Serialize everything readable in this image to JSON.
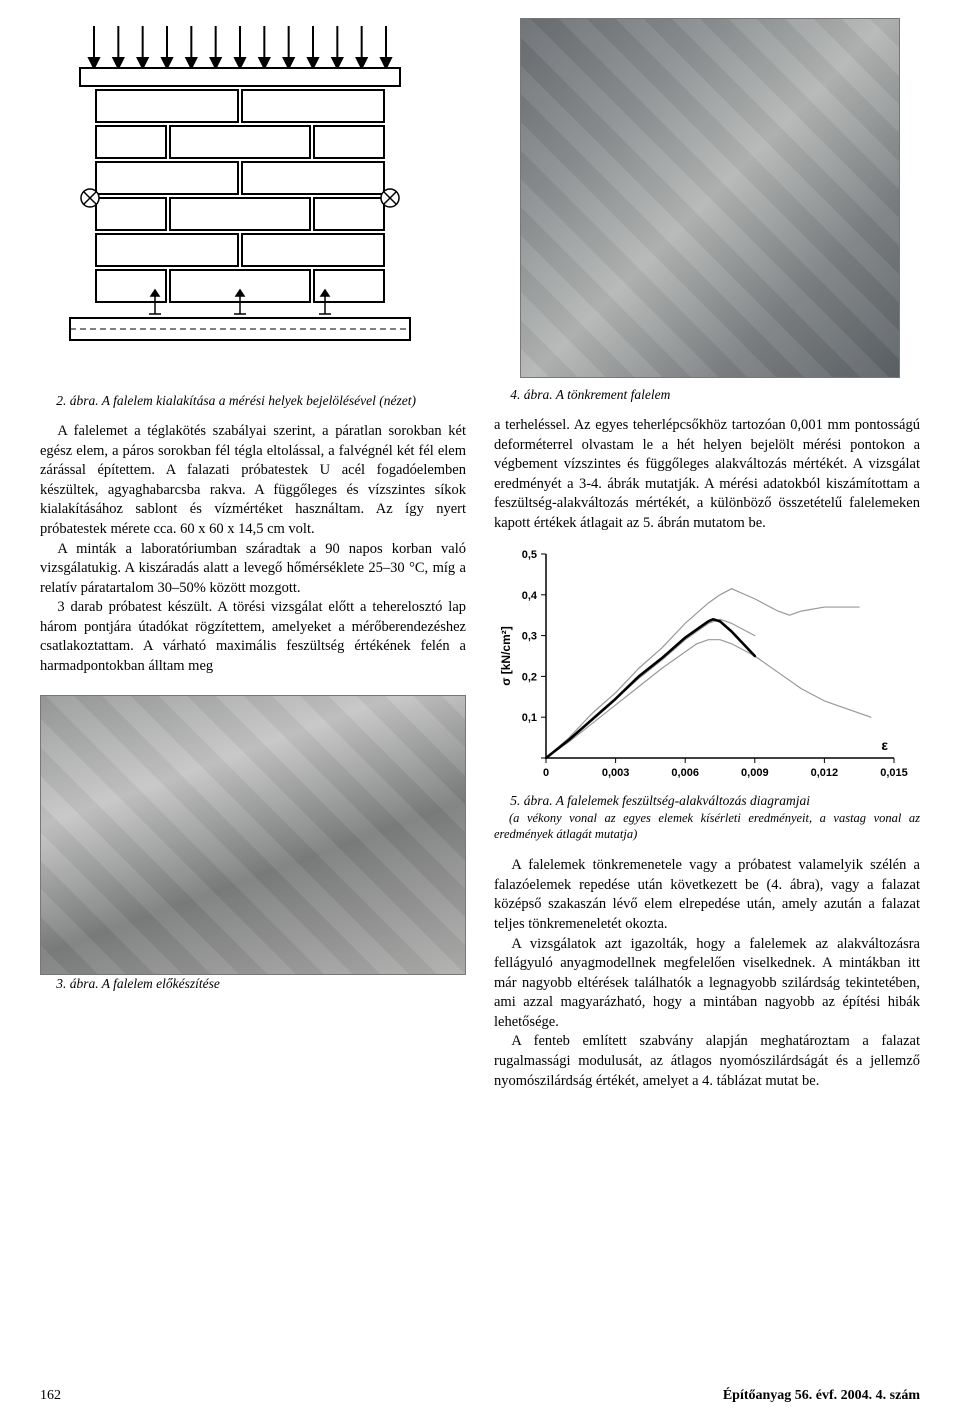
{
  "figure2": {
    "caption": "2. ábra. A falelem kialakítása a mérési helyek bejelölésével (nézet)",
    "arrow_count": 13,
    "brick_rows": 6,
    "stroke": "#000000",
    "fill": "#ffffff"
  },
  "figure4": {
    "caption": "4. ábra. A tönkrement falelem"
  },
  "left_text": {
    "p1": "A falelemet a téglakötés szabályai szerint, a páratlan sorokban két egész elem, a páros sorokban fél tégla eltolással, a falvégnél két fél elem zárással építettem. A falazati próbatestek U acél fogadóelemben készültek, agyaghabarcsba rakva. A függőleges és vízszintes síkok kialakításához sablont és vízmértéket használtam. Az így nyert próbatestek mérete cca. 60 x 60 x 14,5 cm volt.",
    "p2": "A minták a laboratóriumban száradtak a 90 napos korban való vizsgálatukig. A kiszáradás alatt a levegő hőmérséklete 25–30 °C, míg a relatív páratartalom 30–50% között mozgott.",
    "p3": "3 darab próbatest készült. A törési vizsgálat előtt a teherelosztó lap három pontjára útadókat rögzítettem, amelyeket a mérőberendezéshez csatlakoztattam. A várható maximális feszültség értékének felén a harmadpontokban álltam meg"
  },
  "right_text": {
    "p1": "a terheléssel. Az egyes teherlépcsőkhöz tartozóan 0,001 mm pontosságú deforméterrel olvastam le a hét helyen bejelölt mérési pontokon a végbement vízszintes és függőleges alakváltozás mértékét. A vizsgálat eredményét a 3-4. ábrák mutatják. A mérési adatokból kiszámítottam a feszültség-alakváltozás mértékét, a különböző összetételű falelemeken kapott értékek átlagait az 5. ábrán mutatom be.",
    "p2": "A falelemek tönkremenetele vagy a próbatest valamelyik szélén a falazóelemek repedése után következett be (4. ábra), vagy a falazat középső szakaszán lévő elem elrepedése után, amely azután a falazat teljes tönkremeneletét okozta.",
    "p3": "A vizsgálatok azt igazolták, hogy a falelemek az alakváltozásra fellágyuló anyagmodellnek megfelelően viselkednek. A mintákban itt már nagyobb eltérések találhatók a legnagyobb szilárdság tekintetében, ami azzal magyarázható, hogy a mintában nagyobb az építési hibák lehetősége.",
    "p4": "A fenteb említett szabvány alapján meghatároztam a falazat rugalmassági modulusát, az átlagos nyomószilárdságát és a jellemző nyomószilárdság értékét, amelyet a 4. táblázat mutat be."
  },
  "figure3": {
    "caption": "3. ábra. A falelem előkészítése"
  },
  "chart": {
    "type": "line",
    "title": "",
    "xlabel": "ε",
    "ylabel": "σ [kN/cm²]",
    "xlim": [
      0,
      0.015
    ],
    "xticks": [
      0,
      0.003,
      0.006,
      0.009,
      0.012,
      0.015
    ],
    "xticklabels": [
      "0",
      "0,003",
      "0,006",
      "0,009",
      "0,012",
      "0,015"
    ],
    "ylim": [
      0,
      0.5
    ],
    "yticks": [
      0,
      0.1,
      0.2,
      0.3,
      0.4,
      0.5
    ],
    "yticklabels": [
      "0",
      "0,1",
      "0,2",
      "0,3",
      "0,4",
      "0,5"
    ],
    "grid_color": "#ffffff",
    "axis_color": "#000000",
    "background": "#ffffff",
    "label_fontsize": 12,
    "tick_fontsize": 11,
    "series": [
      {
        "name": "thin-1",
        "data": [
          [
            0,
            0
          ],
          [
            0.001,
            0.05
          ],
          [
            0.002,
            0.11
          ],
          [
            0.003,
            0.16
          ],
          [
            0.004,
            0.22
          ],
          [
            0.005,
            0.27
          ],
          [
            0.0055,
            0.3
          ],
          [
            0.006,
            0.33
          ],
          [
            0.007,
            0.38
          ],
          [
            0.0075,
            0.4
          ],
          [
            0.008,
            0.415
          ],
          [
            0.009,
            0.39
          ],
          [
            0.01,
            0.36
          ],
          [
            0.0105,
            0.35
          ],
          [
            0.011,
            0.36
          ],
          [
            0.012,
            0.37
          ],
          [
            0.013,
            0.37
          ],
          [
            0.0135,
            0.37
          ]
        ],
        "color": "#999999",
        "width": 1.2
      },
      {
        "name": "thin-2",
        "data": [
          [
            0,
            0
          ],
          [
            0.001,
            0.045
          ],
          [
            0.002,
            0.095
          ],
          [
            0.003,
            0.145
          ],
          [
            0.004,
            0.195
          ],
          [
            0.005,
            0.24
          ],
          [
            0.006,
            0.29
          ],
          [
            0.0065,
            0.31
          ],
          [
            0.007,
            0.33
          ],
          [
            0.0075,
            0.34
          ],
          [
            0.008,
            0.33
          ],
          [
            0.0085,
            0.315
          ],
          [
            0.009,
            0.3
          ]
        ],
        "color": "#999999",
        "width": 1.2
      },
      {
        "name": "thin-3",
        "data": [
          [
            0,
            0
          ],
          [
            0.001,
            0.04
          ],
          [
            0.002,
            0.085
          ],
          [
            0.003,
            0.13
          ],
          [
            0.004,
            0.175
          ],
          [
            0.005,
            0.22
          ],
          [
            0.006,
            0.26
          ],
          [
            0.0065,
            0.28
          ],
          [
            0.007,
            0.29
          ],
          [
            0.0075,
            0.29
          ],
          [
            0.008,
            0.28
          ],
          [
            0.009,
            0.25
          ],
          [
            0.01,
            0.21
          ],
          [
            0.011,
            0.17
          ],
          [
            0.012,
            0.14
          ],
          [
            0.013,
            0.12
          ],
          [
            0.014,
            0.1
          ]
        ],
        "color": "#999999",
        "width": 1.2
      },
      {
        "name": "average",
        "data": [
          [
            0,
            0
          ],
          [
            0.001,
            0.045
          ],
          [
            0.002,
            0.095
          ],
          [
            0.003,
            0.145
          ],
          [
            0.004,
            0.2
          ],
          [
            0.005,
            0.245
          ],
          [
            0.006,
            0.295
          ],
          [
            0.0065,
            0.315
          ],
          [
            0.007,
            0.335
          ],
          [
            0.0072,
            0.34
          ],
          [
            0.0075,
            0.335
          ],
          [
            0.008,
            0.31
          ],
          [
            0.0085,
            0.28
          ],
          [
            0.009,
            0.25
          ]
        ],
        "color": "#000000",
        "width": 2.6
      }
    ],
    "caption": "5. ábra. A falelemek feszültség-alakváltozás diagramjai",
    "subcaption": "(a vékony vonal az egyes elemek kísérleti eredményeit, a vastag vonal az eredmények átlagát mutatja)"
  },
  "footer": {
    "page": "162",
    "journal": "Építőanyag 56. évf. 2004. 4. szám"
  }
}
